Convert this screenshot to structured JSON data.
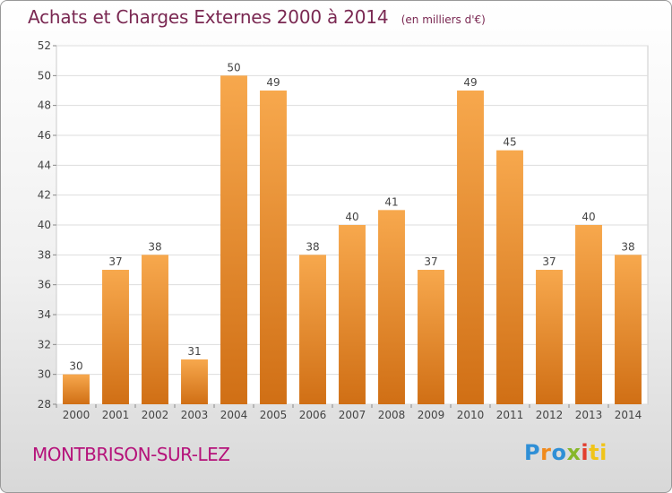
{
  "title": "Achats et Charges Externes 2000 à 2014",
  "unit": "(en milliers d'€)",
  "commune": "MONTBRISON-SUR-LEZ",
  "logo": {
    "text": "Proxiti",
    "letters": [
      "P",
      "r",
      "o",
      "x",
      "i",
      "ti"
    ]
  },
  "colors": {
    "bar_light": "#f7a84d",
    "bar_dark": "#d06f15",
    "title": "#7a2852",
    "commune": "#b5127a"
  },
  "chart_data": {
    "type": "bar",
    "categories": [
      "2000",
      "2001",
      "2002",
      "2003",
      "2004",
      "2005",
      "2006",
      "2007",
      "2008",
      "2009",
      "2010",
      "2011",
      "2012",
      "2013",
      "2014"
    ],
    "values": [
      30,
      37,
      38,
      31,
      50,
      49,
      38,
      40,
      41,
      37,
      49,
      45,
      37,
      40,
      38
    ],
    "ylim": [
      28,
      52
    ],
    "yticks": [
      28,
      30,
      32,
      34,
      36,
      38,
      40,
      42,
      44,
      46,
      48,
      50,
      52
    ],
    "grid": "horizontal",
    "data_labels": true
  }
}
